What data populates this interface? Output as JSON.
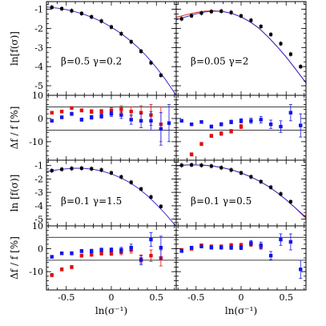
{
  "colors": {
    "model_curve": "#3a2ad1",
    "fit_curve": "#e02020",
    "main_points": "#000000",
    "residual_a": "#e01010",
    "residual_b": "#1515e6",
    "reference_lines": "#000000"
  },
  "chart_data": [
    {
      "type": "scatter",
      "kind": "main",
      "annotation": "β=0.5  γ=0.2",
      "ylabel": "ln[f(σ)]",
      "xlabel": "",
      "xlim": [
        -0.72,
        0.72
      ],
      "ylim": [
        -5.5,
        -0.6
      ],
      "xticks": [
        "-0.5",
        "0",
        "0.5"
      ],
      "yticks": [
        "-1",
        "-2",
        "-3",
        "-4",
        "-5"
      ],
      "series": [
        {
          "style": "line",
          "color": "#3a2ad1",
          "x": [
            -0.72,
            -0.6,
            -0.5,
            -0.4,
            -0.3,
            -0.2,
            -0.1,
            0,
            0.1,
            0.2,
            0.3,
            0.4,
            0.5,
            0.6,
            0.72
          ],
          "y": [
            -0.88,
            -0.94,
            -1.02,
            -1.13,
            -1.27,
            -1.45,
            -1.67,
            -1.93,
            -2.24,
            -2.6,
            -3.02,
            -3.5,
            -4.05,
            -4.67,
            -5.5
          ]
        },
        {
          "style": "points",
          "color": "#000000",
          "x": [
            -0.66,
            -0.55,
            -0.44,
            -0.33,
            -0.22,
            -0.11,
            0.0,
            0.11,
            0.22,
            0.33,
            0.44,
            0.55
          ],
          "y": [
            -0.9,
            -0.97,
            -1.08,
            -1.22,
            -1.4,
            -1.62,
            -1.93,
            -2.28,
            -2.7,
            -3.2,
            -3.8,
            -4.45
          ]
        }
      ]
    },
    {
      "type": "scatter",
      "kind": "main",
      "annotation": "β=0.05  γ=2",
      "ylabel": "",
      "xlabel": "",
      "xlim": [
        -0.72,
        0.72
      ],
      "ylim": [
        -5.5,
        -0.6
      ],
      "xticks": [
        "-0.5",
        "0",
        "0.5"
      ],
      "yticks": [],
      "series": [
        {
          "style": "line",
          "color": "#e02020",
          "x": [
            -0.72,
            -0.6,
            -0.5,
            -0.4,
            -0.3,
            -0.2,
            -0.1,
            0,
            0.1,
            0.2,
            0.3,
            0.4,
            0.5,
            0.6,
            0.72
          ],
          "y": [
            -1.42,
            -1.28,
            -1.17,
            -1.1,
            -1.08,
            -1.12,
            -1.22,
            -1.4,
            -1.66,
            -2.0,
            -2.45,
            -2.95,
            -3.5,
            -4.1,
            -4.85
          ]
        },
        {
          "style": "line",
          "color": "#3a2ad1",
          "x": [
            -0.72,
            -0.6,
            -0.5,
            -0.4,
            -0.3,
            -0.2,
            -0.1,
            0,
            0.1,
            0.2,
            0.3,
            0.4,
            0.5,
            0.6,
            0.72
          ],
          "y": [
            -1.55,
            -1.38,
            -1.24,
            -1.14,
            -1.1,
            -1.12,
            -1.22,
            -1.4,
            -1.66,
            -2.0,
            -2.45,
            -2.95,
            -3.5,
            -4.1,
            -4.85
          ]
        },
        {
          "style": "points",
          "color": "#000000",
          "x": [
            -0.66,
            -0.55,
            -0.44,
            -0.33,
            -0.22,
            -0.11,
            0.0,
            0.11,
            0.22,
            0.33,
            0.44,
            0.55,
            0.66
          ],
          "y": [
            -1.5,
            -1.34,
            -1.2,
            -1.12,
            -1.1,
            -1.17,
            -1.35,
            -1.58,
            -1.9,
            -2.32,
            -2.8,
            -3.35,
            -4.0
          ]
        }
      ]
    },
    {
      "type": "scatter",
      "kind": "residual",
      "annotation": "",
      "ylabel": "Δf / f  [%]",
      "xlabel": "",
      "xlim": [
        -0.72,
        0.72
      ],
      "ylim": [
        -18,
        10
      ],
      "xticks": [
        "-0.5",
        "0",
        "0.5"
      ],
      "yticks": [
        "10",
        "0",
        "-10"
      ],
      "hlines": [
        5,
        -5
      ],
      "series": [
        {
          "style": "errorbar",
          "color": "#e01010",
          "x": [
            -0.66,
            -0.55,
            -0.44,
            -0.33,
            -0.22,
            -0.11,
            0.0,
            0.11,
            0.22,
            0.33,
            0.44,
            0.55
          ],
          "y": [
            2.5,
            3.0,
            4.5,
            3.5,
            3.0,
            3.0,
            3.5,
            4.0,
            3.0,
            2.5,
            1.5,
            -2.5
          ],
          "err": [
            0.6,
            0.6,
            0.6,
            0.7,
            0.8,
            0.9,
            1.1,
            1.5,
            2.0,
            3.0,
            4.5,
            7.5
          ]
        },
        {
          "style": "errorbar",
          "color": "#1515e6",
          "x": [
            -0.66,
            -0.55,
            -0.44,
            -0.33,
            -0.22,
            -0.11,
            0.0,
            0.11,
            0.22,
            0.33,
            0.44,
            0.55,
            0.64
          ],
          "y": [
            -1.0,
            0.5,
            2.0,
            -0.5,
            0.5,
            1.0,
            2.0,
            1.5,
            -0.5,
            -1.0,
            -1.0,
            -4.5,
            -2.0
          ],
          "err": [
            0.6,
            0.6,
            0.7,
            0.7,
            0.8,
            0.9,
            1.1,
            1.5,
            2.0,
            3.0,
            4.0,
            7.0,
            8.0
          ]
        }
      ]
    },
    {
      "type": "scatter",
      "kind": "residual",
      "annotation": "",
      "ylabel": "",
      "xlabel": "",
      "xlim": [
        -0.72,
        0.72
      ],
      "ylim": [
        -18,
        10
      ],
      "xticks": [
        "-0.5",
        "0",
        "0.5"
      ],
      "yticks": [],
      "hlines": [
        5,
        -5
      ],
      "series": [
        {
          "style": "errorbar",
          "color": "#e01010",
          "x": [
            -0.55,
            -0.44,
            -0.33,
            -0.22,
            -0.11,
            0.0
          ],
          "y": [
            -15.5,
            -11.0,
            -7.5,
            -6.5,
            -5.5,
            -3.5
          ],
          "err": [
            0.7,
            0.7,
            0.7,
            0.8,
            0.8,
            0.9
          ]
        },
        {
          "style": "errorbar",
          "color": "#1515e6",
          "x": [
            -0.66,
            -0.55,
            -0.44,
            -0.33,
            -0.22,
            -0.11,
            0.0,
            0.11,
            0.22,
            0.33,
            0.44,
            0.55,
            0.66
          ],
          "y": [
            -1.0,
            -2.5,
            -1.5,
            -3.5,
            -2.5,
            -1.5,
            -1.0,
            -1.0,
            -0.5,
            -2.5,
            -3.5,
            2.5,
            -3.0
          ],
          "err": [
            0.6,
            0.6,
            0.6,
            0.7,
            0.7,
            0.8,
            0.9,
            1.1,
            1.4,
            1.8,
            2.5,
            3.5,
            5.0
          ]
        }
      ]
    },
    {
      "type": "scatter",
      "kind": "main",
      "annotation": "β=0.1  γ=1.5",
      "ylabel": "ln [f(σ)]",
      "xlabel": "",
      "xlim": [
        -0.72,
        0.72
      ],
      "ylim": [
        -5.5,
        -0.6
      ],
      "xticks": [
        "-0.5",
        "0",
        "0.5"
      ],
      "yticks": [
        "-1",
        "-2",
        "-3",
        "-4",
        "-5"
      ],
      "series": [
        {
          "style": "line",
          "color": "#3a2ad1",
          "x": [
            -0.72,
            -0.6,
            -0.5,
            -0.4,
            -0.3,
            -0.2,
            -0.1,
            0,
            0.1,
            0.2,
            0.3,
            0.4,
            0.5,
            0.6,
            0.72
          ],
          "y": [
            -1.45,
            -1.32,
            -1.24,
            -1.2,
            -1.21,
            -1.28,
            -1.42,
            -1.62,
            -1.9,
            -2.25,
            -2.7,
            -3.25,
            -3.9,
            -4.6,
            -5.55
          ]
        },
        {
          "style": "points",
          "color": "#000000",
          "x": [
            -0.66,
            -0.55,
            -0.44,
            -0.33,
            -0.22,
            -0.11,
            0.0,
            0.11,
            0.22,
            0.33,
            0.44,
            0.55
          ],
          "y": [
            -1.38,
            -1.28,
            -1.22,
            -1.2,
            -1.24,
            -1.33,
            -1.55,
            -1.85,
            -2.25,
            -2.75,
            -3.35,
            -4.05
          ]
        }
      ]
    },
    {
      "type": "scatter",
      "kind": "main",
      "annotation": "β=0.1  γ=0.5",
      "ylabel": "",
      "xlabel": "",
      "xlim": [
        -0.72,
        0.72
      ],
      "ylim": [
        -5.5,
        -0.6
      ],
      "xticks": [
        "-0.5",
        "0",
        "0.5"
      ],
      "yticks": [],
      "series": [
        {
          "style": "line",
          "color": "#e02020",
          "x": [
            -0.72,
            -0.6,
            -0.5,
            -0.4,
            -0.3,
            -0.2,
            -0.1,
            0,
            0.1,
            0.2,
            0.3,
            0.4,
            0.5,
            0.6,
            0.72
          ],
          "y": [
            -1.0,
            -0.95,
            -0.95,
            -0.98,
            -1.05,
            -1.17,
            -1.33,
            -1.55,
            -1.82,
            -2.15,
            -2.55,
            -3.02,
            -3.55,
            -4.15,
            -4.95
          ]
        },
        {
          "style": "line",
          "color": "#3a2ad1",
          "x": [
            -0.72,
            -0.6,
            -0.5,
            -0.4,
            -0.3,
            -0.2,
            -0.1,
            0,
            0.1,
            0.2,
            0.3,
            0.4,
            0.5,
            0.6,
            0.72
          ],
          "y": [
            -1.02,
            -0.96,
            -0.95,
            -0.98,
            -1.05,
            -1.17,
            -1.33,
            -1.55,
            -1.82,
            -2.15,
            -2.55,
            -3.02,
            -3.55,
            -4.15,
            -4.85
          ]
        },
        {
          "style": "points",
          "color": "#000000",
          "x": [
            -0.66,
            -0.55,
            -0.44,
            -0.33,
            -0.22,
            -0.11,
            0.0,
            0.11,
            0.22,
            0.33,
            0.44,
            0.55
          ],
          "y": [
            -0.98,
            -0.95,
            -0.98,
            -1.04,
            -1.16,
            -1.33,
            -1.55,
            -1.84,
            -2.2,
            -2.62,
            -3.12,
            -3.7
          ]
        }
      ]
    },
    {
      "type": "scatter",
      "kind": "residual",
      "annotation": "",
      "ylabel": "Δf / f  [%]",
      "xlabel": "ln(σ⁻¹)",
      "xlim": [
        -0.72,
        0.72
      ],
      "ylim": [
        -18,
        10
      ],
      "xticks": [
        "-0.5",
        "0",
        "0.5"
      ],
      "yticks": [
        "10",
        "0",
        "-10"
      ],
      "hlines": [
        5,
        -5
      ],
      "series": [
        {
          "style": "errorbar",
          "color": "#e01010",
          "x": [
            -0.66,
            -0.55,
            -0.44,
            -0.33,
            -0.22,
            -0.11,
            0.0,
            0.11,
            0.22,
            0.33,
            0.44,
            0.55
          ],
          "y": [
            -11.5,
            -9.0,
            -8.0,
            -3.0,
            -2.5,
            -2.0,
            -2.0,
            -1.5,
            -0.5,
            -4.5,
            -3.0,
            -4.0
          ],
          "err": [
            0.7,
            0.7,
            0.7,
            0.7,
            0.8,
            0.8,
            0.9,
            1.1,
            1.4,
            1.8,
            2.5,
            3.5
          ]
        },
        {
          "style": "errorbar",
          "color": "#1515e6",
          "x": [
            -0.66,
            -0.55,
            -0.44,
            -0.33,
            -0.22,
            -0.11,
            0.0,
            0.11,
            0.22,
            0.33,
            0.44,
            0.55
          ],
          "y": [
            -3.5,
            -2.0,
            -2.0,
            -1.0,
            -1.0,
            -0.5,
            -0.5,
            -0.5,
            0.5,
            -5.0,
            4.0,
            0.5
          ],
          "err": [
            0.6,
            0.6,
            0.7,
            0.7,
            0.8,
            0.8,
            0.9,
            1.1,
            1.5,
            2.0,
            3.0,
            5.0
          ]
        }
      ]
    },
    {
      "type": "scatter",
      "kind": "residual",
      "annotation": "",
      "ylabel": "",
      "xlabel": "ln(σ⁻¹)",
      "xlim": [
        -0.72,
        0.72
      ],
      "ylim": [
        -18,
        10
      ],
      "xticks": [
        "-0.5",
        "0",
        "0.5"
      ],
      "yticks": [],
      "hlines": [
        5,
        -5
      ],
      "series": [
        {
          "style": "errorbar",
          "color": "#e01010",
          "x": [
            -0.66,
            -0.55,
            -0.44,
            -0.33,
            -0.22,
            -0.11,
            0.0,
            0.11,
            0.22
          ],
          "y": [
            -0.5,
            0.0,
            1.5,
            1.0,
            1.0,
            1.5,
            1.5,
            2.0,
            1.0
          ],
          "err": [
            0.6,
            0.6,
            0.6,
            0.7,
            0.7,
            0.8,
            0.9,
            1.0,
            1.2
          ]
        },
        {
          "style": "errorbar",
          "color": "#1515e6",
          "x": [
            -0.66,
            -0.55,
            -0.44,
            -0.33,
            -0.22,
            -0.11,
            0.0,
            0.11,
            0.22,
            0.33,
            0.44,
            0.55,
            0.66
          ],
          "y": [
            -1.0,
            0.5,
            1.0,
            0.5,
            0.5,
            0.5,
            0.5,
            2.5,
            1.5,
            -3.0,
            4.0,
            3.0,
            -9.0
          ],
          "err": [
            0.6,
            0.6,
            0.6,
            0.7,
            0.7,
            0.8,
            0.9,
            1.1,
            1.4,
            1.8,
            2.5,
            3.5,
            4.0
          ]
        }
      ]
    }
  ]
}
